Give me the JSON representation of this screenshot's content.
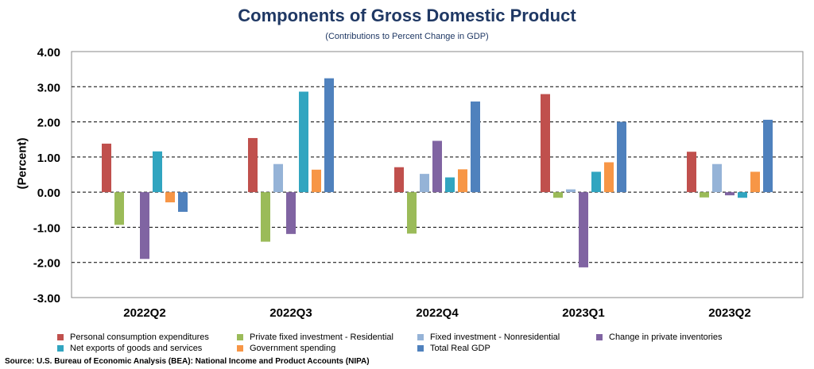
{
  "title": "Components of Gross Domestic Product",
  "subtitle": "(Contributions to Percent Change in GDP)",
  "source": "Source: U.S. Bureau of Economic Analysis (BEA): National Income and Product Accounts (NIPA)",
  "chart_data": {
    "type": "bar",
    "ylabel": "(Percent)",
    "ylim": [
      -3,
      4
    ],
    "yticks": [
      "-3.00",
      "-2.00",
      "-1.00",
      "0.00",
      "1.00",
      "2.00",
      "3.00",
      "4.00"
    ],
    "grid": true,
    "legend_position": "bottom",
    "categories": [
      "2022Q2",
      "2022Q3",
      "2022Q4",
      "2023Q1",
      "2023Q2"
    ],
    "series": [
      {
        "name": "Personal consumption expenditures",
        "color": "#c0504d",
        "values": [
          1.38,
          1.54,
          0.71,
          2.79,
          1.15
        ]
      },
      {
        "name": "Private fixed investment - Residential",
        "color": "#9bbb59",
        "values": [
          -0.93,
          -1.41,
          -1.18,
          -0.16,
          -0.15
        ]
      },
      {
        "name": "Fixed investment - Nonresidential",
        "color": "#95b3d7",
        "values": [
          0.0,
          0.8,
          0.52,
          0.08,
          0.8
        ]
      },
      {
        "name": "Change in private inventories",
        "color": "#8064a2",
        "values": [
          -1.9,
          -1.19,
          1.46,
          -2.14,
          -0.09
        ]
      },
      {
        "name": "Net exports of goods and services",
        "color": "#31a5c0",
        "values": [
          1.16,
          2.86,
          0.42,
          0.58,
          -0.16
        ]
      },
      {
        "name": "Government spending",
        "color": "#f79646",
        "values": [
          -0.29,
          0.64,
          0.65,
          0.85,
          0.58
        ]
      },
      {
        "name": "Total Real GDP",
        "color": "#4f81bd",
        "values": [
          -0.56,
          3.24,
          2.58,
          2.0,
          2.06
        ]
      }
    ]
  }
}
